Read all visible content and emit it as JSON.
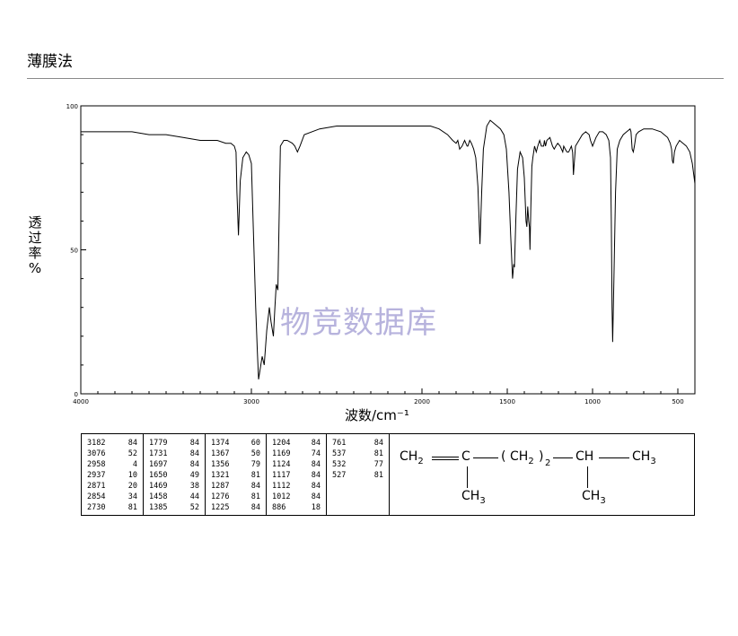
{
  "page": {
    "title": "薄膜法"
  },
  "watermark": "物竞数据库",
  "chart_data": {
    "type": "line",
    "xlabel": "波数/cm⁻¹",
    "ylabel": "透过率%",
    "ylabel_chars": [
      "透",
      "过",
      "率",
      "%"
    ],
    "xlim": [
      4000,
      400
    ],
    "ylim": [
      0,
      100
    ],
    "x_ticks": [
      4000,
      3000,
      2000,
      1500,
      1000,
      500
    ],
    "x_tick_labels": [
      "4000",
      "3000",
      "2000",
      "1500",
      "1000",
      "500"
    ],
    "y_ticks": [
      0,
      50,
      100
    ],
    "y_tick_labels": [
      "0",
      "50",
      "100"
    ],
    "series": [
      {
        "x": [
          4000,
          3900,
          3800,
          3700,
          3600,
          3500,
          3400,
          3300,
          3200,
          3150,
          3120,
          3100,
          3090,
          3085,
          3076,
          3065,
          3050,
          3030,
          3015,
          3000,
          2990,
          2975,
          2965,
          2958,
          2950,
          2937,
          2925,
          2910,
          2895,
          2885,
          2871,
          2862,
          2854,
          2845,
          2830,
          2810,
          2790,
          2760,
          2745,
          2730,
          2715,
          2690,
          2600,
          2500,
          2400,
          2300,
          2200,
          2100,
          2000,
          1950,
          1900,
          1850,
          1820,
          1800,
          1790,
          1779,
          1765,
          1750,
          1735,
          1731,
          1720,
          1710,
          1697,
          1685,
          1672,
          1660,
          1650,
          1640,
          1620,
          1600,
          1580,
          1560,
          1540,
          1520,
          1505,
          1490,
          1480,
          1469,
          1462,
          1458,
          1450,
          1440,
          1425,
          1410,
          1400,
          1390,
          1385,
          1380,
          1374,
          1370,
          1367,
          1362,
          1356,
          1350,
          1340,
          1330,
          1321,
          1310,
          1300,
          1287,
          1282,
          1276,
          1268,
          1250,
          1235,
          1225,
          1215,
          1204,
          1190,
          1175,
          1169,
          1160,
          1150,
          1140,
          1124,
          1117,
          1112,
          1100,
          1080,
          1060,
          1040,
          1020,
          1012,
          1000,
          980,
          960,
          940,
          920,
          905,
          895,
          890,
          886,
          882,
          875,
          865,
          855,
          840,
          820,
          800,
          780,
          775,
          768,
          761,
          755,
          745,
          730,
          700,
          650,
          600,
          580,
          560,
          545,
          537,
          532,
          527,
          520,
          510,
          490,
          470,
          450,
          430,
          415,
          400
        ],
        "y": [
          91,
          91,
          91,
          91,
          90,
          90,
          89,
          88,
          88,
          87,
          87,
          86,
          84,
          70,
          55,
          74,
          82,
          84,
          83,
          80,
          60,
          30,
          15,
          5,
          8,
          13,
          10,
          22,
          30,
          25,
          20,
          30,
          38,
          36,
          86,
          88,
          88,
          87,
          86,
          84,
          86,
          90,
          92,
          93,
          93,
          93,
          93,
          93,
          93,
          93,
          92,
          90,
          88,
          87,
          88,
          85,
          86,
          88,
          86,
          86,
          88,
          87,
          85,
          82,
          72,
          52,
          70,
          85,
          93,
          95,
          94,
          93,
          92,
          90,
          85,
          70,
          55,
          40,
          45,
          44,
          60,
          78,
          84,
          82,
          75,
          60,
          58,
          65,
          60,
          58,
          50,
          64,
          79,
          82,
          86,
          84,
          86,
          88,
          86,
          86,
          88,
          86,
          88,
          89,
          86,
          85,
          86,
          87,
          86,
          84,
          86,
          85,
          84,
          84,
          86,
          84,
          76,
          86,
          88,
          90,
          91,
          90,
          88,
          86,
          89,
          91,
          91,
          90,
          88,
          82,
          60,
          30,
          18,
          40,
          70,
          85,
          88,
          90,
          91,
          92,
          91,
          85,
          84,
          86,
          90,
          91,
          92,
          92,
          91,
          90,
          89,
          87,
          85,
          81,
          80,
          84,
          86,
          88,
          87,
          86,
          84,
          80,
          73
        ]
      }
    ]
  },
  "peak_table": {
    "columns": [
      [
        [
          "3182",
          "84"
        ],
        [
          "3076",
          "52"
        ],
        [
          "2958",
          "4"
        ],
        [
          "2937",
          "10"
        ],
        [
          "2871",
          "20"
        ],
        [
          "2854",
          "34"
        ],
        [
          "2730",
          "81"
        ]
      ],
      [
        [
          "1779",
          "84"
        ],
        [
          "1731",
          "84"
        ],
        [
          "1697",
          "84"
        ],
        [
          "1650",
          "49"
        ],
        [
          "1469",
          "38"
        ],
        [
          "1458",
          "44"
        ],
        [
          "1385",
          "52"
        ]
      ],
      [
        [
          "1374",
          "60"
        ],
        [
          "1367",
          "50"
        ],
        [
          "1356",
          "79"
        ],
        [
          "1321",
          "81"
        ],
        [
          "1287",
          "84"
        ],
        [
          "1276",
          "81"
        ],
        [
          "1225",
          "84"
        ]
      ],
      [
        [
          "1204",
          "84"
        ],
        [
          "1169",
          "74"
        ],
        [
          "1124",
          "84"
        ],
        [
          "1117",
          "84"
        ],
        [
          "1112",
          "84"
        ],
        [
          "1012",
          "84"
        ],
        [
          "886",
          "18"
        ]
      ],
      [
        [
          "761",
          "84"
        ],
        [
          "537",
          "81"
        ],
        [
          "532",
          "77"
        ],
        [
          "527",
          "81"
        ]
      ]
    ]
  },
  "structure": {
    "ch2": "CH",
    "ch2_sub": "2",
    "c": "C",
    "open_paren": "(",
    "ch2_mid": "CH",
    "ch2_mid_sub": "2",
    "close_paren": ")",
    "repeat_sub": "2",
    "ch": "CH",
    "ch3_right": "CH",
    "ch3_right_sub": "3",
    "ch3_left": "CH",
    "ch3_left_sub": "3",
    "ch3_bottom": "CH",
    "ch3_bottom_sub": "3"
  }
}
